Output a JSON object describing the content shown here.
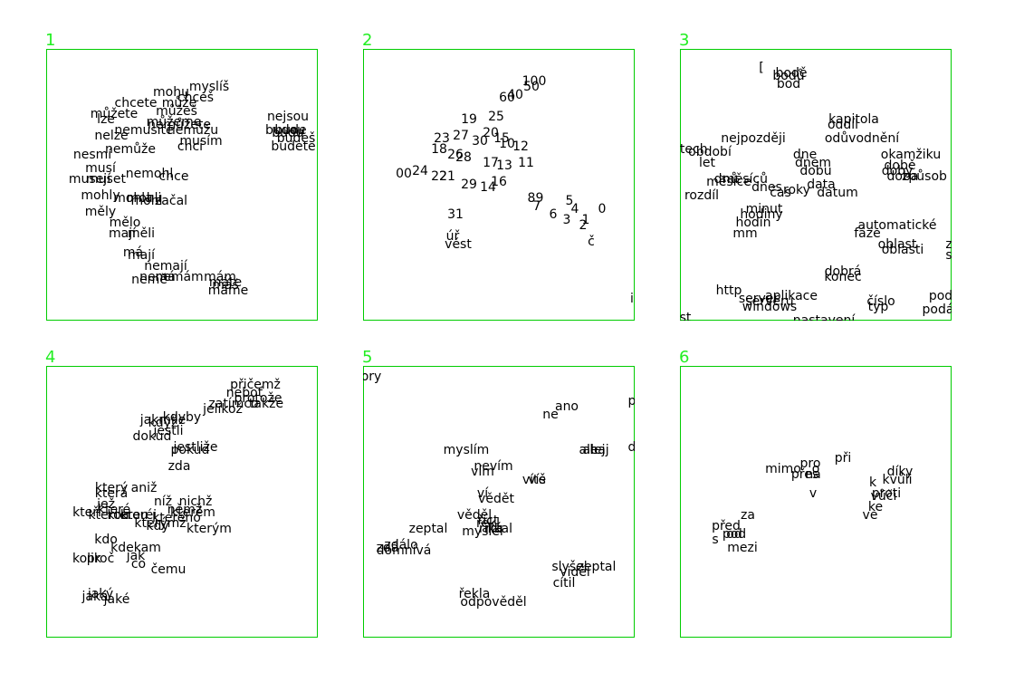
{
  "panel_color": "#00cc00",
  "label_color": "#22ee22",
  "panels": [
    {
      "label": "1",
      "words": [
        [
          "myslíš",
          0.6,
          0.14
        ],
        [
          "mohu",
          0.46,
          0.16
        ],
        [
          "chceš",
          0.55,
          0.18
        ],
        [
          "chcete",
          0.33,
          0.2
        ],
        [
          "může",
          0.49,
          0.2
        ],
        [
          "můžete",
          0.25,
          0.24
        ],
        [
          "můžeš",
          0.48,
          0.23
        ],
        [
          "lze",
          0.22,
          0.26
        ],
        [
          "můžeme",
          0.47,
          0.27
        ],
        [
          "nemůžete",
          0.49,
          0.28
        ],
        [
          "nemusíte",
          0.36,
          0.3
        ],
        [
          "nemůžu",
          0.54,
          0.3
        ],
        [
          "nelze",
          0.24,
          0.32
        ],
        [
          "musím",
          0.57,
          0.34
        ],
        [
          "chci",
          0.53,
          0.36
        ],
        [
          "nemůže",
          0.31,
          0.37
        ],
        [
          "nesmí",
          0.17,
          0.39
        ],
        [
          "musí",
          0.2,
          0.44
        ],
        [
          "nemohl",
          0.38,
          0.46
        ],
        [
          "muset",
          0.22,
          0.48
        ],
        [
          "chce",
          0.47,
          0.47
        ],
        [
          "musejí",
          0.16,
          0.48
        ],
        [
          "mohly",
          0.2,
          0.54
        ],
        [
          "mohla",
          0.32,
          0.55
        ],
        [
          "mohli",
          0.36,
          0.55
        ],
        [
          "začal",
          0.46,
          0.56
        ],
        [
          "mohl",
          0.37,
          0.56
        ],
        [
          "měly",
          0.2,
          0.6
        ],
        [
          "mělo",
          0.29,
          0.64
        ],
        [
          "mají",
          0.28,
          0.68
        ],
        [
          "měli",
          0.35,
          0.68
        ],
        [
          "má",
          0.32,
          0.75
        ],
        [
          "mají",
          0.35,
          0.76
        ],
        [
          "nemají",
          0.44,
          0.8
        ],
        [
          "nemá",
          0.41,
          0.84
        ],
        [
          "nemám",
          0.49,
          0.84
        ],
        [
          "nemě",
          0.38,
          0.85
        ],
        [
          "mám",
          0.64,
          0.84
        ],
        [
          "máte",
          0.66,
          0.86
        ],
        [
          "máš",
          0.66,
          0.87
        ],
        [
          "máme",
          0.67,
          0.89
        ],
        [
          "nejsou",
          0.89,
          0.25
        ],
        [
          "budou",
          0.88,
          0.3
        ],
        [
          "bude",
          0.9,
          0.3
        ],
        [
          "budeš",
          0.92,
          0.33
        ],
        [
          "budete",
          0.91,
          0.36
        ],
        [
          "budu",
          0.89,
          0.31
        ]
      ]
    },
    {
      "label": "2",
      "words": [
        [
          "100",
          0.63,
          0.12
        ],
        [
          "50",
          0.62,
          0.14
        ],
        [
          "40",
          0.56,
          0.17
        ],
        [
          "60",
          0.53,
          0.18
        ],
        [
          "19",
          0.39,
          0.26
        ],
        [
          "25",
          0.49,
          0.25
        ],
        [
          "20",
          0.47,
          0.31
        ],
        [
          "27",
          0.36,
          0.32
        ],
        [
          "23",
          0.29,
          0.33
        ],
        [
          "15",
          0.51,
          0.33
        ],
        [
          "30",
          0.43,
          0.34
        ],
        [
          "10",
          0.53,
          0.35
        ],
        [
          "12",
          0.58,
          0.36
        ],
        [
          "18",
          0.28,
          0.37
        ],
        [
          "26",
          0.34,
          0.39
        ],
        [
          "28",
          0.37,
          0.4
        ],
        [
          "17",
          0.47,
          0.42
        ],
        [
          "13",
          0.52,
          0.43
        ],
        [
          "11",
          0.6,
          0.42
        ],
        [
          "00",
          0.15,
          0.46
        ],
        [
          "24",
          0.21,
          0.45
        ],
        [
          "22",
          0.28,
          0.47
        ],
        [
          "21",
          0.31,
          0.47
        ],
        [
          "16",
          0.5,
          0.49
        ],
        [
          "29",
          0.39,
          0.5
        ],
        [
          "14",
          0.46,
          0.51
        ],
        [
          "8",
          0.62,
          0.55
        ],
        [
          "9",
          0.65,
          0.55
        ],
        [
          "7",
          0.64,
          0.58
        ],
        [
          "5",
          0.76,
          0.56
        ],
        [
          "4",
          0.78,
          0.59
        ],
        [
          "6",
          0.7,
          0.61
        ],
        [
          "3",
          0.75,
          0.63
        ],
        [
          "1",
          0.82,
          0.63
        ],
        [
          "0",
          0.88,
          0.59
        ],
        [
          "2",
          0.81,
          0.65
        ],
        [
          "31",
          0.34,
          0.61
        ],
        [
          "úř",
          0.33,
          0.69
        ],
        [
          "vést",
          0.35,
          0.72
        ],
        [
          "č",
          0.84,
          0.71
        ],
        [
          "i",
          0.99,
          0.92
        ]
      ]
    },
    {
      "label": "3",
      "words": [
        [
          "[",
          0.3,
          0.07
        ],
        [
          "bodě",
          0.41,
          0.09
        ],
        [
          "bodů",
          0.4,
          0.1
        ],
        [
          "bod",
          0.4,
          0.13
        ],
        [
          "kapitola",
          0.64,
          0.26
        ],
        [
          "oddíl",
          0.6,
          0.28
        ],
        [
          "nejpozději",
          0.27,
          0.33
        ],
        [
          "odůvodnění",
          0.67,
          0.33
        ],
        [
          "období",
          0.11,
          0.38
        ],
        [
          "letech",
          0.03,
          0.37
        ],
        [
          "let",
          0.1,
          0.42
        ],
        [
          "dne",
          0.46,
          0.39
        ],
        [
          "dnem",
          0.49,
          0.42
        ],
        [
          "okamžiku",
          0.85,
          0.39
        ],
        [
          "době",
          0.81,
          0.43
        ],
        [
          "dobu",
          0.5,
          0.45
        ],
        [
          "dobý",
          0.8,
          0.45
        ],
        [
          "doba",
          0.82,
          0.47
        ],
        [
          "způsob",
          0.9,
          0.47
        ],
        [
          "dnů",
          0.17,
          0.48
        ],
        [
          "měsíců",
          0.24,
          0.48
        ],
        [
          "měsíce",
          0.18,
          0.49
        ],
        [
          "dnes",
          0.32,
          0.51
        ],
        [
          "data",
          0.52,
          0.5
        ],
        [
          "čas",
          0.37,
          0.53
        ],
        [
          "roky",
          0.43,
          0.52
        ],
        [
          "rozdíl",
          0.08,
          0.54
        ],
        [
          "datum",
          0.58,
          0.53
        ],
        [
          "minut",
          0.31,
          0.59
        ],
        [
          "hodiny",
          0.3,
          0.61
        ],
        [
          "hodin",
          0.27,
          0.64
        ],
        [
          "mm",
          0.24,
          0.68
        ],
        [
          "automatické",
          0.8,
          0.65
        ],
        [
          "fáze",
          0.69,
          0.68
        ],
        [
          "oblast",
          0.8,
          0.72
        ],
        [
          "oblasti",
          0.82,
          0.74
        ],
        [
          "z",
          0.99,
          0.72
        ],
        [
          "s",
          0.99,
          0.76
        ],
        [
          "dobrá",
          0.6,
          0.82
        ],
        [
          "konec",
          0.6,
          0.84
        ],
        [
          "http",
          0.18,
          0.89
        ],
        [
          "aplikace",
          0.41,
          0.91
        ],
        [
          "server",
          0.29,
          0.92
        ],
        [
          "serveru",
          0.33,
          0.93
        ],
        [
          "windows",
          0.33,
          0.95
        ],
        [
          "číslo",
          0.74,
          0.93
        ],
        [
          "typ",
          0.73,
          0.95
        ],
        [
          "pod",
          0.96,
          0.91
        ],
        [
          "podá",
          0.95,
          0.96
        ],
        [
          "st",
          0.02,
          0.99
        ],
        [
          "nastavení",
          0.53,
          1.0
        ]
      ]
    },
    {
      "label": "4",
      "words": [
        [
          "přičemž",
          0.77,
          0.07
        ],
        [
          "neboť",
          0.73,
          0.1
        ],
        [
          "protože",
          0.78,
          0.12
        ],
        [
          "zatímco",
          0.69,
          0.14
        ],
        [
          "takže",
          0.81,
          0.14
        ],
        [
          "jelikož",
          0.65,
          0.16
        ],
        [
          "kdyby",
          0.5,
          0.19
        ],
        [
          "jakmile",
          0.43,
          0.2
        ],
        [
          "když",
          0.43,
          0.21
        ],
        [
          "jestli",
          0.45,
          0.24
        ],
        [
          "dokud",
          0.39,
          0.26
        ],
        [
          "jestliže",
          0.55,
          0.3
        ],
        [
          "pokud",
          0.53,
          0.31
        ],
        [
          "zda",
          0.49,
          0.37
        ],
        [
          "který",
          0.24,
          0.45
        ],
        [
          "aniž",
          0.36,
          0.45
        ],
        [
          "která",
          0.24,
          0.47
        ],
        [
          "jež",
          0.22,
          0.51
        ],
        [
          "níž",
          0.43,
          0.5
        ],
        [
          "nichž",
          0.55,
          0.5
        ],
        [
          "které",
          0.25,
          0.53
        ],
        [
          "kterou",
          0.23,
          0.55
        ],
        [
          "němž",
          0.51,
          0.53
        ],
        [
          "kterém",
          0.54,
          0.54
        ],
        [
          "kterého",
          0.48,
          0.56
        ],
        [
          "kteří",
          0.15,
          0.54
        ],
        [
          "kterou",
          0.3,
          0.55
        ],
        [
          "kteréi",
          0.34,
          0.55
        ],
        [
          "kterýmž",
          0.42,
          0.58
        ],
        [
          "kterým",
          0.6,
          0.6
        ],
        [
          "kdy",
          0.41,
          0.59
        ],
        [
          "kdo",
          0.22,
          0.64
        ],
        [
          "kdekam",
          0.33,
          0.67
        ],
        [
          "proč",
          0.2,
          0.71
        ],
        [
          "jak",
          0.33,
          0.7
        ],
        [
          "kolik",
          0.15,
          0.71
        ],
        [
          "co",
          0.34,
          0.73
        ],
        [
          "čemu",
          0.45,
          0.75
        ],
        [
          "jaký",
          0.2,
          0.84
        ],
        [
          "jaká",
          0.18,
          0.85
        ],
        [
          "jaké",
          0.26,
          0.86
        ]
      ]
    },
    {
      "label": "5",
      "words": [
        [
          "ory",
          0.03,
          0.04
        ],
        [
          "ano",
          0.75,
          0.15
        ],
        [
          "ne",
          0.69,
          0.18
        ],
        [
          "ale",
          0.83,
          0.31
        ],
        [
          "alej",
          0.85,
          0.31
        ],
        [
          "haj",
          0.87,
          0.31
        ],
        [
          "p",
          0.99,
          0.13
        ],
        [
          "d",
          0.99,
          0.3
        ],
        [
          "myslím",
          0.38,
          0.31
        ],
        [
          "nevím",
          0.48,
          0.37
        ],
        [
          "vím",
          0.44,
          0.39
        ],
        [
          "víte",
          0.63,
          0.42
        ],
        [
          "víš",
          0.64,
          0.42
        ],
        [
          "ví",
          0.44,
          0.47
        ],
        [
          "vědět",
          0.49,
          0.49
        ],
        [
          "věděl",
          0.41,
          0.55
        ],
        [
          "říct",
          0.46,
          0.57
        ],
        [
          "řekl",
          0.46,
          0.58
        ],
        [
          "říká",
          0.47,
          0.6
        ],
        [
          "říkal",
          0.5,
          0.6
        ],
        [
          "zeptal",
          0.24,
          0.6
        ],
        [
          "myslel",
          0.44,
          0.61
        ],
        [
          "zdálo",
          0.14,
          0.66
        ],
        [
          "zdá",
          0.09,
          0.67
        ],
        [
          "domnívá",
          0.15,
          0.68
        ],
        [
          "slyšel",
          0.76,
          0.74
        ],
        [
          "zeptal",
          0.86,
          0.74
        ],
        [
          "viděl",
          0.78,
          0.76
        ],
        [
          "cítil",
          0.74,
          0.8
        ],
        [
          "řekla",
          0.41,
          0.84
        ],
        [
          "odpověděl",
          0.48,
          0.87
        ]
      ]
    },
    {
      "label": "6",
      "words": [
        [
          "při",
          0.6,
          0.34
        ],
        [
          "pro",
          0.48,
          0.36
        ],
        [
          "mimo",
          0.38,
          0.38
        ],
        [
          "o",
          0.5,
          0.38
        ],
        [
          "přes",
          0.46,
          0.4
        ],
        [
          "na",
          0.49,
          0.4
        ],
        [
          "díky",
          0.81,
          0.39
        ],
        [
          "k",
          0.71,
          0.43
        ],
        [
          "kvůli",
          0.8,
          0.42
        ],
        [
          "proti",
          0.76,
          0.47
        ],
        [
          "vůči",
          0.75,
          0.48
        ],
        [
          "v",
          0.49,
          0.47
        ],
        [
          "ke",
          0.72,
          0.52
        ],
        [
          "ve",
          0.7,
          0.55
        ],
        [
          "za",
          0.25,
          0.55
        ],
        [
          "před",
          0.17,
          0.59
        ],
        [
          "pod",
          0.2,
          0.62
        ],
        [
          "od",
          0.2,
          0.62
        ],
        [
          "s",
          0.13,
          0.64
        ],
        [
          "mezi",
          0.23,
          0.67
        ]
      ]
    }
  ]
}
